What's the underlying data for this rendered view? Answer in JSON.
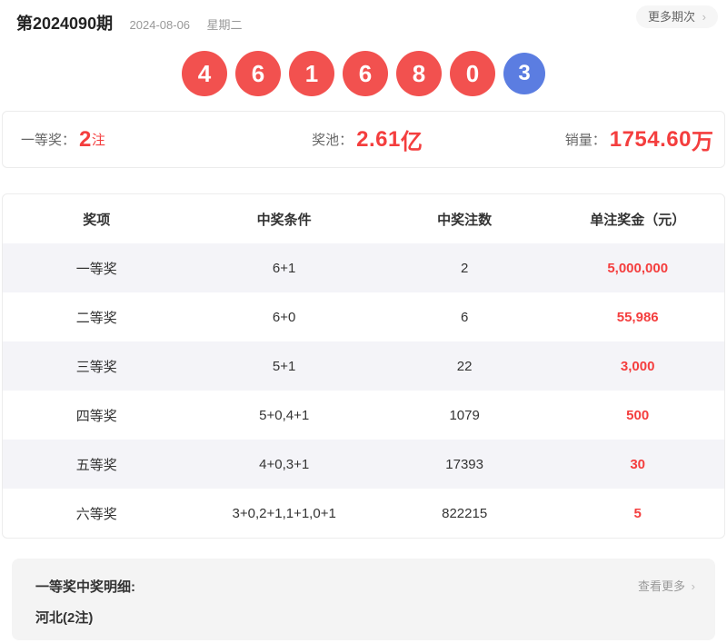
{
  "colors": {
    "red_text": "#f43e3e",
    "ball_red": "#f2514f",
    "ball_blue": "#5b7de1"
  },
  "header": {
    "issue": "第2024090期",
    "date": "2024-08-06",
    "weekday": "星期二",
    "more_label": "更多期次",
    "chevron": "›"
  },
  "balls": {
    "items": [
      {
        "num": "4",
        "color": "red"
      },
      {
        "num": "6",
        "color": "red"
      },
      {
        "num": "1",
        "color": "red"
      },
      {
        "num": "6",
        "color": "red"
      },
      {
        "num": "8",
        "color": "red"
      },
      {
        "num": "0",
        "color": "red"
      },
      {
        "num": "3",
        "color": "blue"
      }
    ]
  },
  "stats": [
    {
      "label": "一等奖：",
      "value": "2",
      "unit": "注"
    },
    {
      "label": "奖池：",
      "value": "2.61",
      "unit": "亿"
    },
    {
      "label": "销量：",
      "value": "1754.60",
      "unit": "万"
    }
  ],
  "table": {
    "headers": [
      "奖项",
      "中奖条件",
      "中奖注数",
      "单注奖金（元）"
    ],
    "rows": [
      {
        "name": "一等奖",
        "condition": "6+1",
        "count": "2",
        "prize": "5,000,000"
      },
      {
        "name": "二等奖",
        "condition": "6+0",
        "count": "6",
        "prize": "55,986"
      },
      {
        "name": "三等奖",
        "condition": "5+1",
        "count": "22",
        "prize": "3,000"
      },
      {
        "name": "四等奖",
        "condition": "5+0,4+1",
        "count": "1079",
        "prize": "500"
      },
      {
        "name": "五等奖",
        "condition": "4+0,3+1",
        "count": "17393",
        "prize": "30"
      },
      {
        "name": "六等奖",
        "condition": "3+0,2+1,1+1,0+1",
        "count": "822215",
        "prize": "5"
      }
    ]
  },
  "footer": {
    "detail_title": "一等奖中奖明细:",
    "detail_region": "河北(2注)",
    "see_more_label": "查看更多",
    "chevron": "›"
  }
}
